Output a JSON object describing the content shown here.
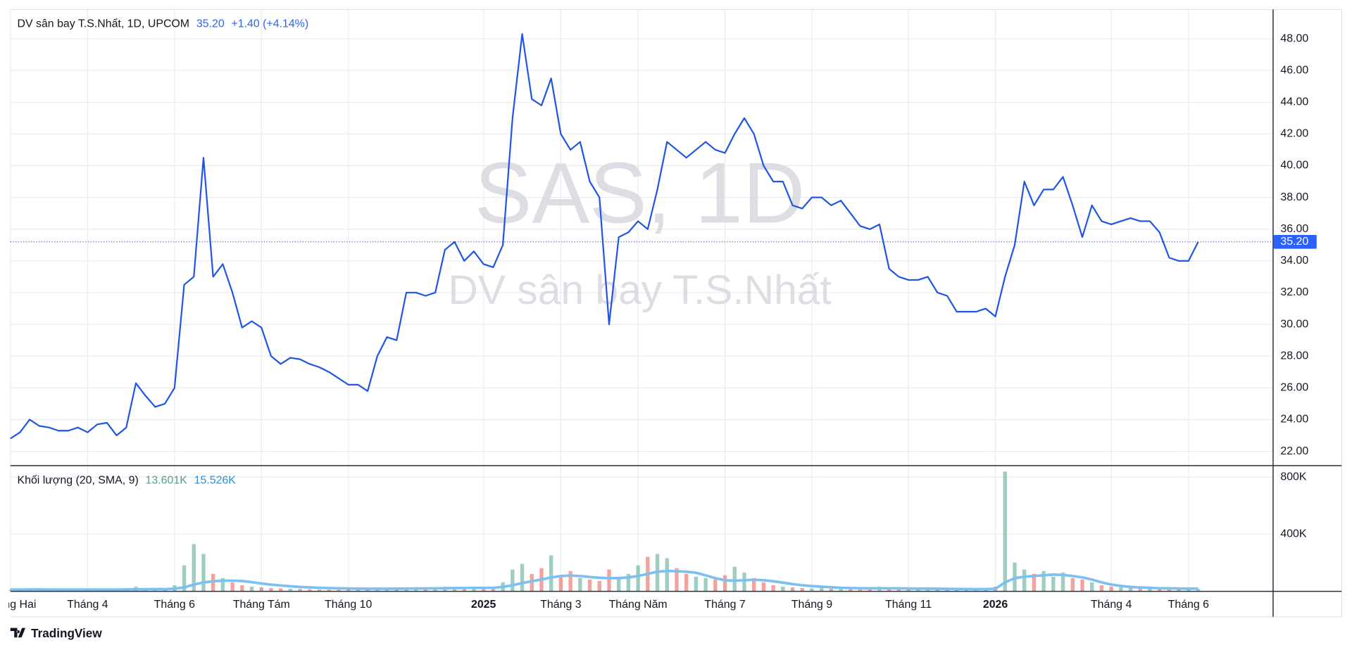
{
  "chart_data": [
    {
      "type": "line",
      "title": "DV sân bay T.S.Nhất, 1D, UPCOM",
      "price": "35.20",
      "change": "+1.40 (+4.14%)",
      "watermark": [
        "SAS, 1D",
        "DV sân bay T.S.Nhất"
      ],
      "color": "#1f55e6",
      "grid": true,
      "categories": [
        "Tháng Hai",
        null,
        null,
        null,
        null,
        null,
        null,
        null,
        "Tháng 4",
        null,
        null,
        null,
        null,
        null,
        null,
        null,
        null,
        "Tháng 6",
        null,
        null,
        null,
        null,
        null,
        null,
        null,
        null,
        "Tháng Tám",
        null,
        null,
        null,
        null,
        null,
        null,
        null,
        null,
        "Tháng 10",
        null,
        null,
        null,
        null,
        null,
        null,
        null,
        null,
        null,
        null,
        null,
        null,
        null,
        "2025",
        null,
        null,
        null,
        null,
        null,
        null,
        null,
        "Tháng 3",
        null,
        null,
        null,
        null,
        null,
        null,
        null,
        "Tháng Năm",
        null,
        null,
        null,
        null,
        null,
        null,
        null,
        null,
        "Tháng 7",
        null,
        null,
        null,
        null,
        null,
        null,
        null,
        null,
        "Tháng 9",
        null,
        null,
        null,
        null,
        null,
        null,
        null,
        null,
        null,
        "Tháng 11",
        null,
        null,
        null,
        null,
        null,
        null,
        null,
        null,
        "2026",
        null,
        null,
        null,
        null,
        null,
        null,
        null,
        null,
        null,
        null,
        null,
        "Tháng 4",
        null,
        null,
        null,
        null,
        null,
        null,
        null,
        "Tháng 6",
        null
      ],
      "values": [
        22.8,
        23.2,
        24.0,
        23.6,
        23.5,
        23.3,
        23.3,
        23.5,
        23.2,
        23.7,
        23.8,
        23.0,
        23.5,
        26.3,
        25.5,
        24.8,
        25.0,
        26.0,
        32.5,
        33.0,
        40.5,
        33.0,
        33.8,
        32.0,
        29.8,
        30.2,
        29.8,
        28.0,
        27.5,
        27.9,
        27.8,
        27.5,
        27.3,
        27.0,
        26.6,
        26.2,
        26.2,
        25.8,
        28.0,
        29.2,
        29.0,
        32.0,
        32.0,
        31.8,
        32.0,
        34.7,
        35.2,
        34.0,
        34.6,
        33.8,
        33.6,
        35.0,
        43.0,
        48.3,
        44.2,
        43.8,
        45.5,
        42.0,
        41.0,
        41.5,
        39.0,
        38.0,
        30.0,
        35.5,
        35.8,
        36.5,
        36.0,
        38.5,
        41.5,
        41.0,
        40.5,
        41.0,
        41.5,
        41.0,
        40.8,
        42.0,
        43.0,
        42.0,
        40.0,
        39.0,
        39.0,
        37.5,
        37.3,
        38.0,
        38.0,
        37.5,
        37.8,
        37.0,
        36.2,
        36.0,
        36.3,
        33.5,
        33.0,
        32.8,
        32.8,
        33.0,
        32.0,
        31.8,
        30.8,
        30.8,
        30.8,
        31.0,
        30.5,
        33.0,
        35.0,
        39.0,
        37.5,
        38.5,
        38.5,
        39.3,
        37.5,
        35.5,
        37.5,
        36.5,
        36.3,
        36.5,
        36.7,
        36.5,
        36.5,
        35.8,
        34.2,
        34.0,
        34.0,
        35.2
      ],
      "ylim": [
        21.13,
        49.79
      ],
      "yticks": [
        {
          "value": 22,
          "label": "22.00"
        },
        {
          "value": 24,
          "label": "24.00"
        },
        {
          "value": 26,
          "label": "26.00"
        },
        {
          "value": 28,
          "label": "28.00"
        },
        {
          "value": 30,
          "label": "30.00"
        },
        {
          "value": 32,
          "label": "32.00"
        },
        {
          "value": 34,
          "label": "34.00"
        },
        {
          "value": 36,
          "label": "36.00"
        },
        {
          "value": 38,
          "label": "38.00"
        },
        {
          "value": 40,
          "label": "40.00"
        },
        {
          "value": 42,
          "label": "42.00"
        },
        {
          "value": 44,
          "label": "44.00"
        },
        {
          "value": 46,
          "label": "46.00"
        },
        {
          "value": 48,
          "label": "48.00"
        }
      ]
    },
    {
      "type": "bar",
      "title": "Khối lượng (20, SMA, 9)",
      "series": [
        {
          "type": "bar",
          "up_color": "#4ea58f",
          "down_color": "#e8574f",
          "color": "#5a9e84",
          "last_label": "13.601K",
          "values": [
            8000,
            12000,
            15000,
            9000,
            7000,
            10000,
            6000,
            11000,
            8000,
            9000,
            14000,
            7000,
            10000,
            30000,
            18000,
            12000,
            15000,
            40000,
            180000,
            330000,
            260000,
            120000,
            90000,
            60000,
            40000,
            30000,
            25000,
            20000,
            18000,
            15000,
            14000,
            12000,
            10000,
            9000,
            8000,
            10000,
            9000,
            12000,
            20000,
            15000,
            18000,
            22000,
            20000,
            16000,
            25000,
            30000,
            28000,
            22000,
            18000,
            20000,
            30000,
            60000,
            150000,
            190000,
            120000,
            160000,
            250000,
            110000,
            140000,
            90000,
            80000,
            70000,
            150000,
            100000,
            120000,
            180000,
            240000,
            260000,
            230000,
            160000,
            120000,
            100000,
            90000,
            80000,
            110000,
            170000,
            130000,
            90000,
            60000,
            40000,
            30000,
            25000,
            20000,
            18000,
            22000,
            15000,
            14000,
            12000,
            15000,
            10000,
            30000,
            20000,
            18000,
            15000,
            14000,
            12000,
            10000,
            15000,
            12000,
            10000,
            9000,
            10000,
            30000,
            840000,
            200000,
            150000,
            120000,
            140000,
            100000,
            130000,
            90000,
            80000,
            60000,
            40000,
            30000,
            25000,
            20000,
            18000,
            22000,
            15000,
            25000,
            20000,
            18000,
            13601
          ]
        },
        {
          "type": "line",
          "color": "#7cc0f2",
          "label_color": "#2e8fd6",
          "last_label": "15.526K",
          "values": [
            10000,
            10000,
            10500,
            10500,
            10000,
            10000,
            9800,
            9800,
            9700,
            9800,
            10000,
            10000,
            10200,
            11000,
            12000,
            12500,
            13000,
            15000,
            25000,
            45000,
            60000,
            68000,
            72000,
            72000,
            70000,
            62000,
            52000,
            44000,
            38000,
            33000,
            28000,
            25000,
            22000,
            20000,
            18000,
            17000,
            16000,
            15000,
            15000,
            15000,
            15500,
            16000,
            17000,
            17500,
            18000,
            19000,
            20000,
            20500,
            21000,
            21000,
            22000,
            28000,
            40000,
            55000,
            68000,
            80000,
            95000,
            105000,
            108000,
            105000,
            98000,
            92000,
            90000,
            90000,
            95000,
            105000,
            120000,
            135000,
            140000,
            138000,
            135000,
            128000,
            110000,
            90000,
            75000,
            72000,
            75000,
            78000,
            75000,
            68000,
            58000,
            48000,
            40000,
            34000,
            30000,
            26000,
            22000,
            20000,
            19000,
            18000,
            18000,
            18000,
            18000,
            17000,
            16000,
            15500,
            15000,
            14500,
            14000,
            13500,
            13000,
            13000,
            15000,
            60000,
            90000,
            100000,
            105000,
            110000,
            115000,
            112000,
            105000,
            95000,
            80000,
            60000,
            45000,
            35000,
            28000,
            24000,
            21000,
            19000,
            18000,
            17000,
            16000,
            15526
          ]
        }
      ],
      "ylim": [
        0,
        866667
      ],
      "yticks": [
        {
          "value": 400000,
          "label": "400K"
        },
        {
          "value": 800000,
          "label": "800K"
        }
      ]
    }
  ],
  "footer": "TradingView"
}
